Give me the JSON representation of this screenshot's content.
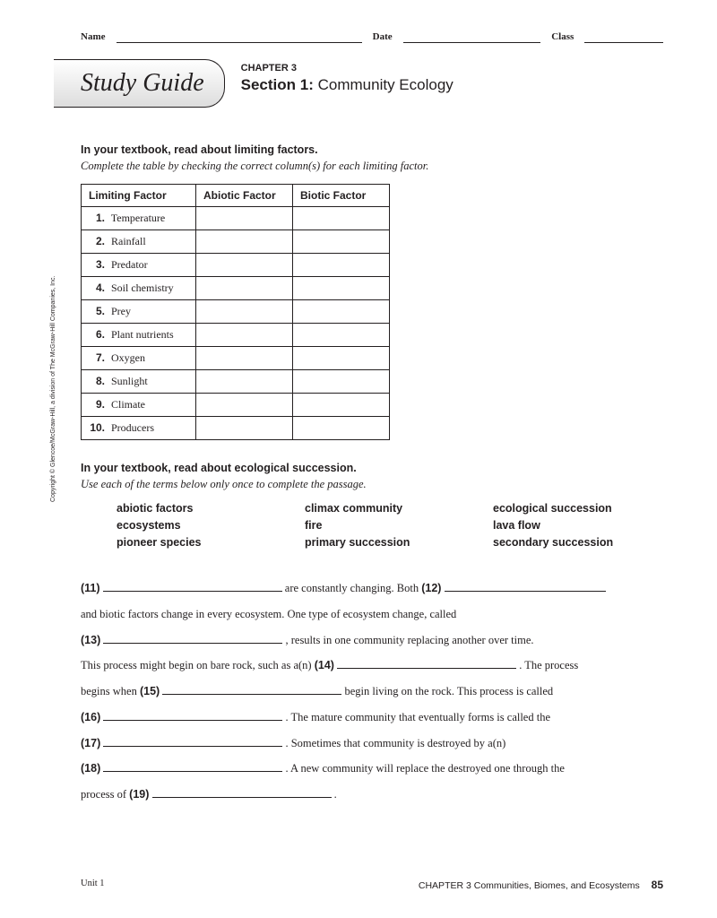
{
  "header": {
    "name": "Name",
    "date": "Date",
    "class": "Class"
  },
  "title": {
    "boxLabel": "Study Guide",
    "chapter": "CHAPTER 3",
    "sectionPrefix": "Section 1:",
    "sectionName": " Community Ecology"
  },
  "part1": {
    "boldInstr": "In your textbook, read about limiting factors.",
    "italicInstr": "Complete the table by checking the correct column(s) for each limiting factor.",
    "table": {
      "columns": [
        "Limiting Factor",
        "Abiotic Factor",
        "Biotic Factor"
      ],
      "rows": [
        {
          "n": "1.",
          "label": "Temperature"
        },
        {
          "n": "2.",
          "label": "Rainfall"
        },
        {
          "n": "3.",
          "label": "Predator"
        },
        {
          "n": "4.",
          "label": "Soil chemistry"
        },
        {
          "n": "5.",
          "label": "Prey"
        },
        {
          "n": "6.",
          "label": "Plant nutrients"
        },
        {
          "n": "7.",
          "label": "Oxygen"
        },
        {
          "n": "8.",
          "label": "Sunlight"
        },
        {
          "n": "9.",
          "label": "Climate"
        },
        {
          "n": "10.",
          "label": "Producers"
        }
      ]
    }
  },
  "part2": {
    "boldInstr": "In your textbook, read about ecological succession.",
    "italicInstr": "Use each of the terms below only once to complete the passage.",
    "terms": [
      "abiotic factors",
      "climax community",
      "ecological succession",
      "ecosystems",
      "fire",
      "lava flow",
      "pioneer species",
      "primary succession",
      "secondary succession"
    ],
    "passage": {
      "p11": "(11)",
      "t11": " are constantly changing. Both ",
      "p12": "(12)",
      "t12": "and biotic factors change in every ecosystem. One type of ecosystem change, called",
      "p13": "(13)",
      "t13": " , results in one community replacing another over time.",
      "t14a": "This process might begin on bare rock, such as a(n) ",
      "p14": "(14)",
      "t14b": " . The process",
      "t15a": "begins when ",
      "p15": "(15)",
      "t15b": " begin living on the rock. This process is called",
      "p16": "(16)",
      "t16": " . The mature community that eventually forms is called the",
      "p17": "(17)",
      "t17": " . Sometimes that community is destroyed by a(n)",
      "p18": "(18)",
      "t18": " . A new community will replace the destroyed one through the",
      "t19a": "process of ",
      "p19": "(19)",
      "t19b": " ."
    }
  },
  "copyright": "Copyright © Glencoe/McGraw-Hill, a division of The McGraw-Hill Companies, Inc.",
  "footer": {
    "left": "Unit 1",
    "right": "CHAPTER 3  Communities, Biomes, and Ecosystems",
    "page": "85"
  }
}
